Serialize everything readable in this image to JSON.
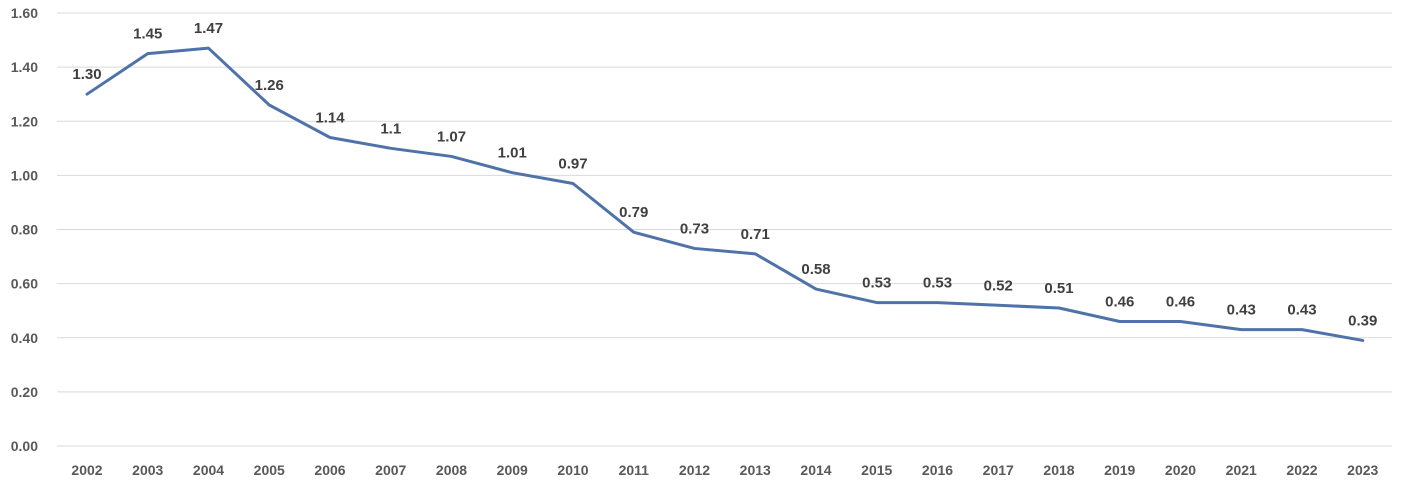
{
  "chart_data": {
    "type": "line",
    "title": "",
    "xlabel": "",
    "ylabel": "",
    "ylim": [
      0,
      1.6
    ],
    "yticks": [
      "0.00",
      "0.20",
      "0.40",
      "0.60",
      "0.80",
      "1.00",
      "1.20",
      "1.40",
      "1.60"
    ],
    "grid": true,
    "legend": "none",
    "categories": [
      "2002",
      "2003",
      "2004",
      "2005",
      "2006",
      "2007",
      "2008",
      "2009",
      "2010",
      "2011",
      "2012",
      "2013",
      "2014",
      "2015",
      "2016",
      "2017",
      "2018",
      "2019",
      "2020",
      "2021",
      "2022",
      "2023"
    ],
    "series": [
      {
        "color": "#4f73a8",
        "values": [
          1.3,
          1.45,
          1.47,
          1.26,
          1.14,
          1.1,
          1.07,
          1.01,
          0.97,
          0.79,
          0.73,
          0.71,
          0.58,
          0.53,
          0.53,
          0.52,
          0.51,
          0.46,
          0.46,
          0.43,
          0.43,
          0.39
        ],
        "labels": [
          "1.30",
          "1.45",
          "1.47",
          "1.26",
          "1.14",
          "1.1",
          "1.07",
          "1.01",
          "0.97",
          "0.79",
          "0.73",
          "0.71",
          "0.58",
          "0.53",
          "0.53",
          "0.52",
          "0.51",
          "0.46",
          "0.46",
          "0.43",
          "0.43",
          "0.39"
        ]
      }
    ]
  }
}
